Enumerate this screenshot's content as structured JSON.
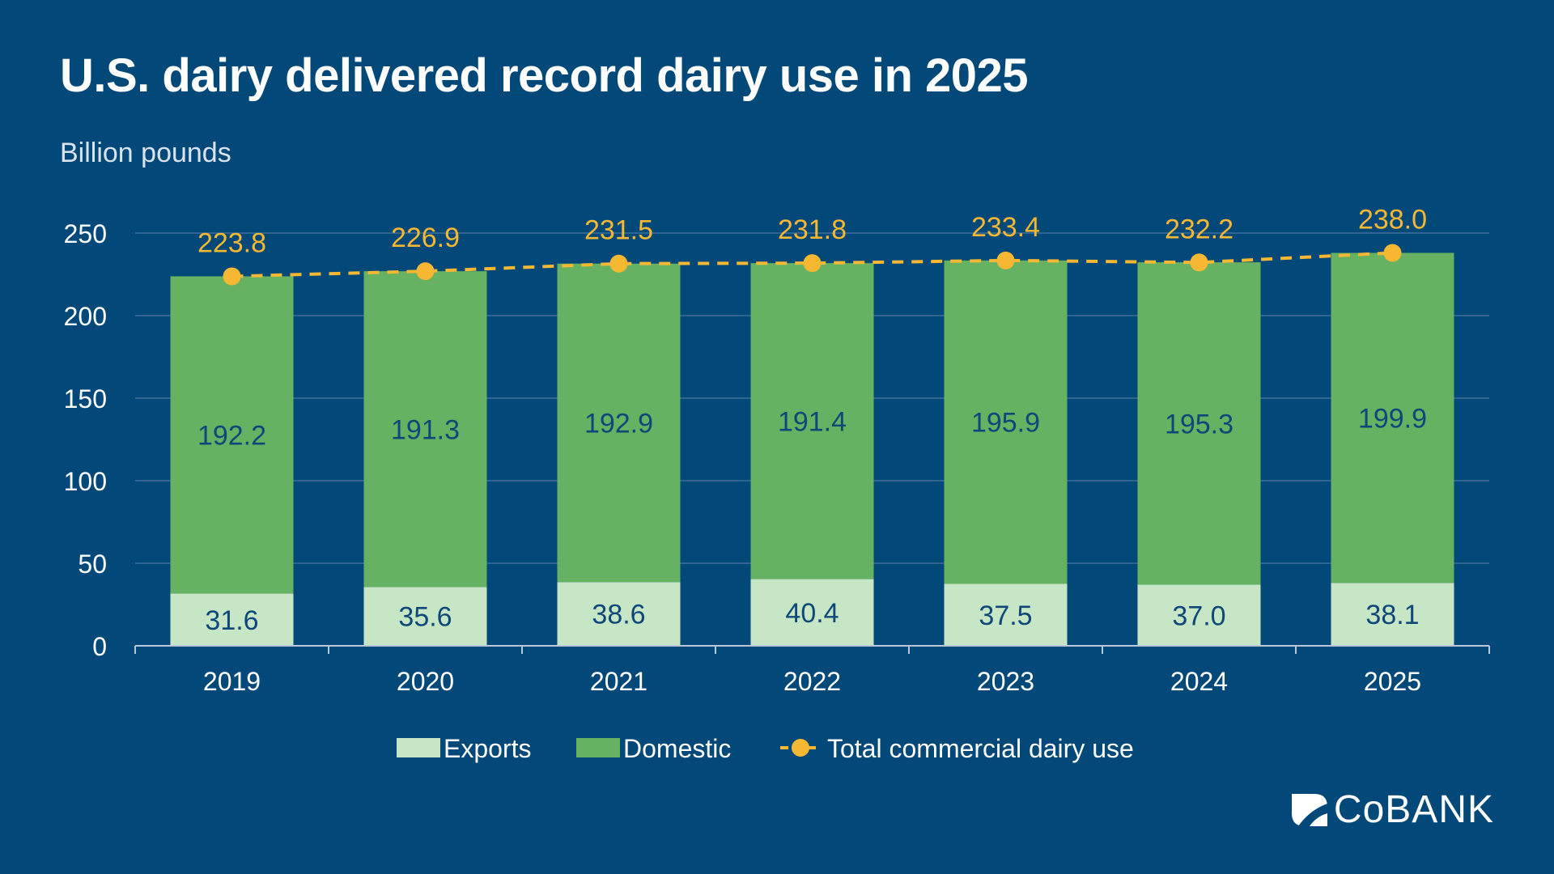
{
  "title": "U.S. dairy delivered record dairy use in 2025",
  "subtitle": "Billion pounds",
  "brand": "CoBANK",
  "colors": {
    "background": "#024879",
    "exports": "#c7e6c6",
    "domestic": "#66b262",
    "total": "#f6b733",
    "bar_label": "#0f4878",
    "text": "#ffffff",
    "gridline": "#3f6f97"
  },
  "chart_data": {
    "type": "bar",
    "stacked": true,
    "categories": [
      "2019",
      "2020",
      "2021",
      "2022",
      "2023",
      "2024",
      "2025"
    ],
    "series": [
      {
        "name": "Exports",
        "type": "bar",
        "values": [
          31.6,
          35.6,
          38.6,
          40.4,
          37.5,
          37.0,
          38.1
        ]
      },
      {
        "name": "Domestic",
        "type": "bar",
        "values": [
          192.2,
          191.3,
          192.9,
          191.4,
          195.9,
          195.3,
          199.9
        ]
      },
      {
        "name": "Total commercial dairy use",
        "type": "line",
        "style": "dashed",
        "values": [
          223.8,
          226.9,
          231.5,
          231.8,
          233.4,
          232.2,
          238.0
        ]
      }
    ],
    "value_labels": {
      "exports": [
        "31.6",
        "35.6",
        "38.6",
        "40.4",
        "37.5",
        "37.0",
        "38.1"
      ],
      "domestic": [
        "192.2",
        "191.3",
        "192.9",
        "191.4",
        "195.9",
        "195.3",
        "199.9"
      ],
      "total": [
        "223.8",
        "226.9",
        "231.5",
        "231.8",
        "233.4",
        "232.2",
        "238.0"
      ]
    },
    "y_ticks": [
      "0",
      "50",
      "100",
      "150",
      "200",
      "250"
    ],
    "ylim": [
      0,
      250
    ],
    "grid": true,
    "legend": "bottom-center"
  }
}
